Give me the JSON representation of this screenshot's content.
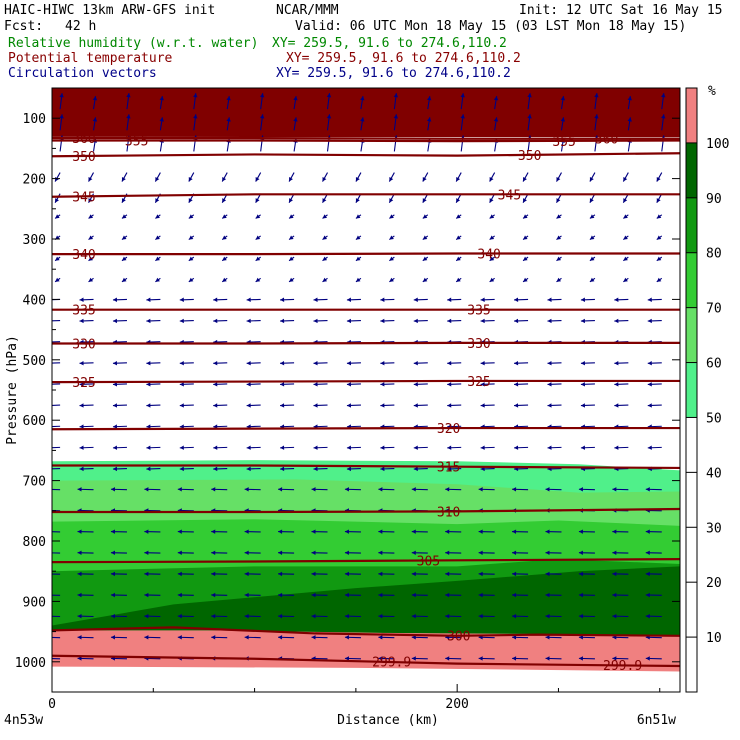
{
  "header": {
    "model": "HAIC-HIWC 13km ARW-GFS init",
    "center": "NCAR/MMM",
    "init": "Init: 12 UTC Sat 16 May 15",
    "fcst_label": "Fcst:",
    "fcst_value": "42 h",
    "valid": "Valid: 06 UTC Mon 18 May 15 (03 LST Mon 18 May 15)",
    "field1": "Relative humidity (w.r.t. water)",
    "field1_xy": "XY= 259.5, 91.6 to 274.6,110.2",
    "field2": "Potential temperature",
    "field2_xy": "XY= 259.5, 91.6 to 274.6,110.2",
    "field3": "Circulation vectors",
    "field3_xy": "XY= 259.5, 91.6 to 274.6,110.2"
  },
  "colors": {
    "rh_title": "#008800",
    "theta_title": "#880000",
    "vector_title": "#000088",
    "theta_line": "#800000",
    "vector": "#000080",
    "rh_fill": [
      "#ffffff",
      "#ffffff",
      "#ffffff",
      "#ffffff",
      "#ffffff",
      "#50f08a",
      "#66e066",
      "#33cc33",
      "#119911",
      "#006600",
      "#f08080"
    ]
  },
  "chart_data": {
    "type": "cross-section",
    "xlabel": "Distance (km)",
    "ylabel": "Pressure (hPa)",
    "xlim": [
      0,
      310
    ],
    "ylim": [
      50,
      1050
    ],
    "x_ticks": [
      0,
      200
    ],
    "y_ticks": [
      100,
      200,
      300,
      400,
      500,
      600,
      700,
      800,
      900,
      1000
    ],
    "left_endpoint": "4n53w",
    "right_endpoint": "6n51w",
    "colorbar": {
      "unit": "%",
      "levels": [
        10,
        20,
        30,
        40,
        50,
        60,
        70,
        80,
        90,
        100
      ]
    },
    "rh_regions": [
      {
        "min": 50,
        "top": [
          [
            0,
            668
          ],
          [
            100,
            666
          ],
          [
            200,
            668
          ],
          [
            260,
            673
          ],
          [
            310,
            683
          ]
        ]
      },
      {
        "min": 60,
        "top": [
          [
            0,
            700
          ],
          [
            120,
            698
          ],
          [
            200,
            706
          ],
          [
            260,
            720
          ],
          [
            310,
            718
          ]
        ]
      },
      {
        "min": 70,
        "top": [
          [
            0,
            768
          ],
          [
            100,
            764
          ],
          [
            200,
            772
          ],
          [
            250,
            766
          ],
          [
            310,
            775
          ]
        ]
      },
      {
        "min": 80,
        "top": [
          [
            0,
            850
          ],
          [
            100,
            842
          ],
          [
            200,
            842
          ],
          [
            250,
            830
          ],
          [
            310,
            838
          ]
        ]
      },
      {
        "min": 90,
        "top": [
          [
            0,
            940
          ],
          [
            60,
            905
          ],
          [
            150,
            878
          ],
          [
            200,
            866
          ],
          [
            260,
            850
          ],
          [
            310,
            842
          ]
        ]
      },
      {
        "min": 100,
        "top": [
          [
            0,
            948
          ],
          [
            80,
            948
          ],
          [
            160,
            952
          ],
          [
            240,
            954
          ],
          [
            310,
            957
          ]
        ]
      }
    ],
    "isentropes": [
      {
        "value": 360,
        "points": [
          [
            0,
            133
          ],
          [
            100,
            133
          ],
          [
            200,
            134
          ],
          [
            310,
            134
          ]
        ],
        "labels": [
          10,
          268
        ]
      },
      {
        "value": 355,
        "points": [
          [
            0,
            137
          ],
          [
            100,
            137
          ],
          [
            200,
            138
          ],
          [
            310,
            137
          ]
        ],
        "labels": [
          36,
          247
        ]
      },
      {
        "value": 350,
        "points": [
          [
            0,
            163
          ],
          [
            100,
            160
          ],
          [
            200,
            162
          ],
          [
            310,
            158
          ]
        ],
        "labels": [
          10,
          230
        ]
      },
      {
        "value": 345,
        "points": [
          [
            0,
            230
          ],
          [
            100,
            226
          ],
          [
            200,
            226
          ],
          [
            310,
            226
          ]
        ],
        "labels": [
          10,
          220
        ]
      },
      {
        "value": 340,
        "points": [
          [
            0,
            325
          ],
          [
            100,
            325
          ],
          [
            200,
            324
          ],
          [
            310,
            324
          ]
        ],
        "labels": [
          10,
          210
        ]
      },
      {
        "value": 335,
        "points": [
          [
            0,
            417
          ],
          [
            100,
            417
          ],
          [
            200,
            417
          ],
          [
            310,
            417
          ]
        ],
        "labels": [
          10,
          205
        ]
      },
      {
        "value": 330,
        "points": [
          [
            0,
            473
          ],
          [
            100,
            473
          ],
          [
            200,
            472
          ],
          [
            310,
            472
          ]
        ],
        "labels": [
          10,
          205
        ]
      },
      {
        "value": 325,
        "points": [
          [
            0,
            537
          ],
          [
            100,
            536
          ],
          [
            200,
            535
          ],
          [
            310,
            535
          ]
        ],
        "labels": [
          10,
          205
        ]
      },
      {
        "value": 320,
        "points": [
          [
            0,
            615
          ],
          [
            100,
            614
          ],
          [
            200,
            613
          ],
          [
            310,
            613
          ]
        ],
        "labels": [
          190
        ]
      },
      {
        "value": 315,
        "points": [
          [
            0,
            675
          ],
          [
            100,
            675
          ],
          [
            200,
            677
          ],
          [
            310,
            679
          ]
        ],
        "labels": [
          190
        ]
      },
      {
        "value": 310,
        "points": [
          [
            0,
            752
          ],
          [
            100,
            752
          ],
          [
            200,
            751
          ],
          [
            310,
            747
          ]
        ],
        "labels": [
          190
        ]
      },
      {
        "value": 305,
        "points": [
          [
            0,
            835
          ],
          [
            100,
            834
          ],
          [
            200,
            832
          ],
          [
            310,
            830
          ]
        ],
        "labels": [
          180
        ]
      },
      {
        "value": 300,
        "points": [
          [
            0,
            948
          ],
          [
            60,
            943
          ],
          [
            130,
            953
          ],
          [
            200,
            957
          ],
          [
            240,
            955
          ],
          [
            310,
            957
          ]
        ],
        "labels": [
          195
        ]
      },
      {
        "value": 299.9,
        "points": [
          [
            0,
            990
          ],
          [
            100,
            995
          ],
          [
            200,
            1003
          ],
          [
            310,
            1007
          ]
        ],
        "labels": [
          158,
          272
        ]
      }
    ],
    "isentrope_label_texts": {
      "360": "360",
      "355": "355",
      "350": "350",
      "345": "345",
      "340": "340",
      "335": "335",
      "330": "330",
      "325": "325",
      "320": "320",
      "315": "315",
      "310": "310",
      "305": "305",
      "300": "300",
      "299.9": "299.9"
    }
  }
}
